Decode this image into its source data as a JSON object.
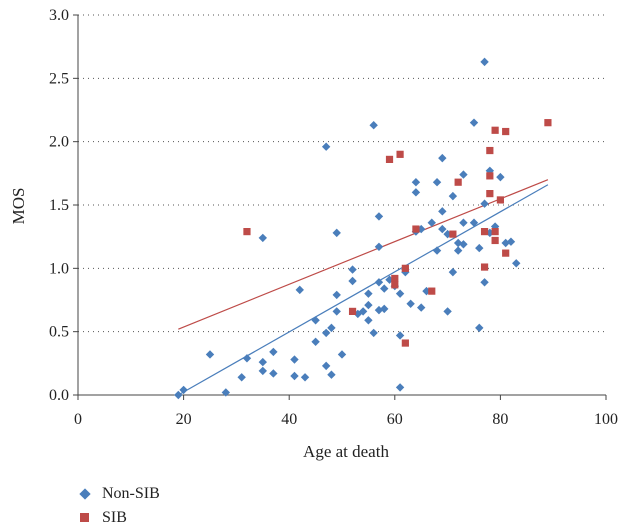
{
  "chart_data": {
    "type": "scatter",
    "xlabel": "Age at death",
    "ylabel": "MOS",
    "xlim": [
      0,
      100
    ],
    "ylim": [
      0,
      3.0
    ],
    "x_ticks": [
      "0",
      "20",
      "40",
      "60",
      "80",
      "100"
    ],
    "y_ticks": [
      "0.0",
      "0.5",
      "1.0",
      "1.5",
      "2.0",
      "2.5",
      "3.0"
    ],
    "grid": "dotted horizontal",
    "legend_position": "bottom-left",
    "series": [
      {
        "name": "Non-SIB",
        "color": "#4a7ebb",
        "marker": "diamond",
        "points": [
          [
            19,
            0.0
          ],
          [
            20,
            0.04
          ],
          [
            25,
            0.32
          ],
          [
            28,
            0.02
          ],
          [
            31,
            0.14
          ],
          [
            32,
            0.29
          ],
          [
            35,
            0.19
          ],
          [
            35,
            0.26
          ],
          [
            35,
            1.24
          ],
          [
            37,
            0.34
          ],
          [
            37,
            0.17
          ],
          [
            41,
            0.15
          ],
          [
            41,
            0.28
          ],
          [
            42,
            0.83
          ],
          [
            43,
            0.14
          ],
          [
            45,
            0.42
          ],
          [
            45,
            0.59
          ],
          [
            47,
            0.23
          ],
          [
            47,
            0.49
          ],
          [
            47,
            1.96
          ],
          [
            48,
            0.53
          ],
          [
            48,
            0.16
          ],
          [
            49,
            0.66
          ],
          [
            49,
            0.79
          ],
          [
            49,
            1.28
          ],
          [
            50,
            0.32
          ],
          [
            52,
            0.9
          ],
          [
            52,
            0.99
          ],
          [
            53,
            0.64
          ],
          [
            54,
            0.66
          ],
          [
            55,
            0.71
          ],
          [
            55,
            0.8
          ],
          [
            55,
            0.59
          ],
          [
            56,
            0.49
          ],
          [
            56,
            2.13
          ],
          [
            57,
            0.67
          ],
          [
            57,
            0.89
          ],
          [
            57,
            1.17
          ],
          [
            57,
            1.41
          ],
          [
            58,
            0.68
          ],
          [
            58,
            0.84
          ],
          [
            59,
            0.91
          ],
          [
            60,
            0.86
          ],
          [
            61,
            0.8
          ],
          [
            61,
            0.47
          ],
          [
            61,
            0.06
          ],
          [
            62,
            0.97
          ],
          [
            62,
            0.99
          ],
          [
            63,
            0.72
          ],
          [
            64,
            1.29
          ],
          [
            64,
            1.6
          ],
          [
            64,
            1.68
          ],
          [
            65,
            0.69
          ],
          [
            65,
            1.31
          ],
          [
            66,
            0.82
          ],
          [
            67,
            1.36
          ],
          [
            68,
            1.14
          ],
          [
            68,
            1.68
          ],
          [
            69,
            1.45
          ],
          [
            69,
            1.87
          ],
          [
            69,
            1.31
          ],
          [
            70,
            0.66
          ],
          [
            70,
            1.27
          ],
          [
            71,
            0.97
          ],
          [
            71,
            1.57
          ],
          [
            72,
            1.2
          ],
          [
            72,
            1.14
          ],
          [
            73,
            1.36
          ],
          [
            73,
            1.74
          ],
          [
            73,
            1.19
          ],
          [
            75,
            2.15
          ],
          [
            75,
            1.36
          ],
          [
            76,
            1.16
          ],
          [
            76,
            0.53
          ],
          [
            77,
            2.63
          ],
          [
            77,
            0.89
          ],
          [
            77,
            1.51
          ],
          [
            78,
            1.28
          ],
          [
            78,
            1.77
          ],
          [
            79,
            1.33
          ],
          [
            80,
            1.72
          ],
          [
            81,
            1.2
          ],
          [
            82,
            1.21
          ],
          [
            83,
            1.04
          ]
        ]
      },
      {
        "name": "SIB",
        "color": "#be4b48",
        "marker": "square",
        "points": [
          [
            32,
            1.29
          ],
          [
            52,
            0.66
          ],
          [
            59,
            1.86
          ],
          [
            60,
            0.92
          ],
          [
            60,
            0.87
          ],
          [
            61,
            1.9
          ],
          [
            62,
            1.0
          ],
          [
            62,
            0.41
          ],
          [
            64,
            1.31
          ],
          [
            67,
            0.82
          ],
          [
            71,
            1.27
          ],
          [
            72,
            1.68
          ],
          [
            77,
            1.29
          ],
          [
            77,
            1.01
          ],
          [
            78,
            1.93
          ],
          [
            78,
            1.59
          ],
          [
            78,
            1.73
          ],
          [
            79,
            2.09
          ],
          [
            79,
            1.29
          ],
          [
            79,
            1.22
          ],
          [
            80,
            1.54
          ],
          [
            81,
            2.08
          ],
          [
            81,
            1.12
          ],
          [
            89,
            2.15
          ]
        ]
      }
    ],
    "trendlines": [
      {
        "series": "Non-SIB",
        "color": "#4a7ebb",
        "x": [
          19,
          89
        ],
        "y": [
          0.0,
          1.66
        ]
      },
      {
        "series": "SIB",
        "color": "#be4b48",
        "x": [
          19,
          89
        ],
        "y": [
          0.52,
          1.7
        ]
      }
    ]
  }
}
